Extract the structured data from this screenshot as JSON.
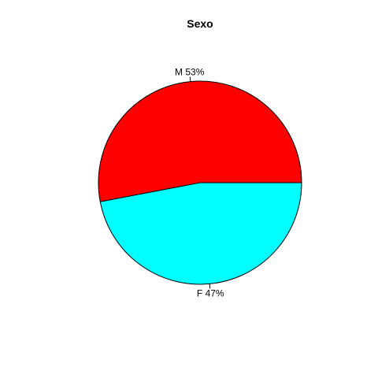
{
  "chart_data": {
    "type": "pie",
    "title": "Sexo",
    "slices": [
      {
        "label": "M 53%",
        "category": "M",
        "percent": 53,
        "color": "#ff0000"
      },
      {
        "label": "F 47%",
        "category": "F",
        "percent": 47,
        "color": "#00ffff"
      }
    ],
    "start_angle_deg": 0,
    "direction": "counterclockwise",
    "outline_color": "#000000"
  }
}
